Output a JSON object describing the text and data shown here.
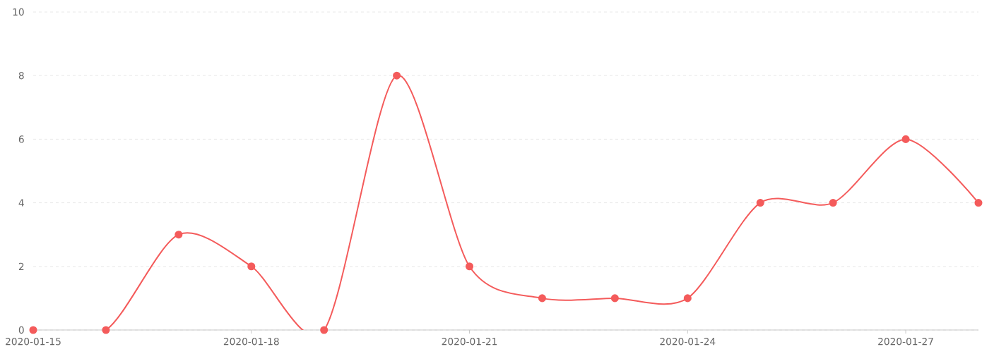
{
  "chart_data": {
    "type": "line",
    "x": [
      "2020-01-15",
      "2020-01-16",
      "2020-01-17",
      "2020-01-18",
      "2020-01-19",
      "2020-01-20",
      "2020-01-21",
      "2020-01-22",
      "2020-01-23",
      "2020-01-24",
      "2020-01-25",
      "2020-01-26",
      "2020-01-27",
      "2020-01-28"
    ],
    "values": [
      0,
      0,
      3,
      2,
      0,
      8,
      2,
      1,
      1,
      1,
      4,
      4,
      6,
      4
    ],
    "color": "#f45b5b",
    "xlim": [
      "2020-01-15",
      "2020-01-28"
    ],
    "xticks": [
      "2020-01-15",
      "2020-01-18",
      "2020-01-21",
      "2020-01-24",
      "2020-01-27"
    ],
    "ylim": [
      0,
      10
    ],
    "yticks": [
      0,
      2,
      4,
      6,
      8,
      10
    ],
    "grid": "y",
    "marker": "circle",
    "line_style": "solid"
  }
}
